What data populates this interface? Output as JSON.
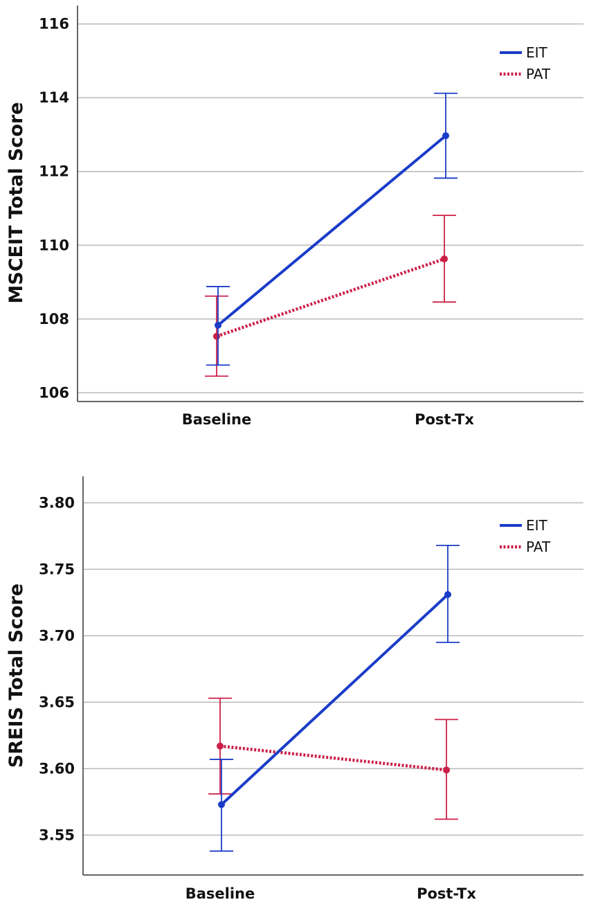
{
  "chart_data": [
    {
      "type": "line",
      "title": "",
      "xlabel": "",
      "ylabel": "MSCEIT Total Score",
      "categories": [
        "Baseline",
        "Post-Tx"
      ],
      "ylim": [
        105.8,
        116.5
      ],
      "yticks": [
        "106",
        "108",
        "110",
        "112",
        "114",
        "116"
      ],
      "legend_position": "top-right",
      "series": [
        {
          "name": "EIT",
          "color": "#1a3cc8",
          "style": "solid",
          "values": [
            107.83,
            112.97
          ],
          "err_low": [
            106.75,
            111.82
          ],
          "err_high": [
            108.88,
            114.12
          ]
        },
        {
          "name": "PAT",
          "color": "#cc1f47",
          "style": "dotted",
          "values": [
            107.53,
            109.63
          ],
          "err_low": [
            106.45,
            108.46
          ],
          "err_high": [
            108.62,
            110.81
          ]
        }
      ]
    },
    {
      "type": "line",
      "title": "",
      "xlabel": "",
      "ylabel": "SREIS Total Score",
      "categories": [
        "Baseline",
        "Post-Tx"
      ],
      "ylim": [
        3.52,
        3.82
      ],
      "yticks": [
        "3.55",
        "3.60",
        "3.65",
        "3.70",
        "3.75",
        "3.80"
      ],
      "legend_position": "top-right",
      "series": [
        {
          "name": "EIT",
          "color": "#1a3cc8",
          "style": "solid",
          "values": [
            3.573,
            3.731
          ],
          "err_low": [
            3.538,
            3.695
          ],
          "err_high": [
            3.607,
            3.768
          ]
        },
        {
          "name": "PAT",
          "color": "#cc1f47",
          "style": "dotted",
          "values": [
            3.617,
            3.599
          ],
          "err_low": [
            3.581,
            3.562
          ],
          "err_high": [
            3.653,
            3.637
          ]
        }
      ]
    }
  ]
}
